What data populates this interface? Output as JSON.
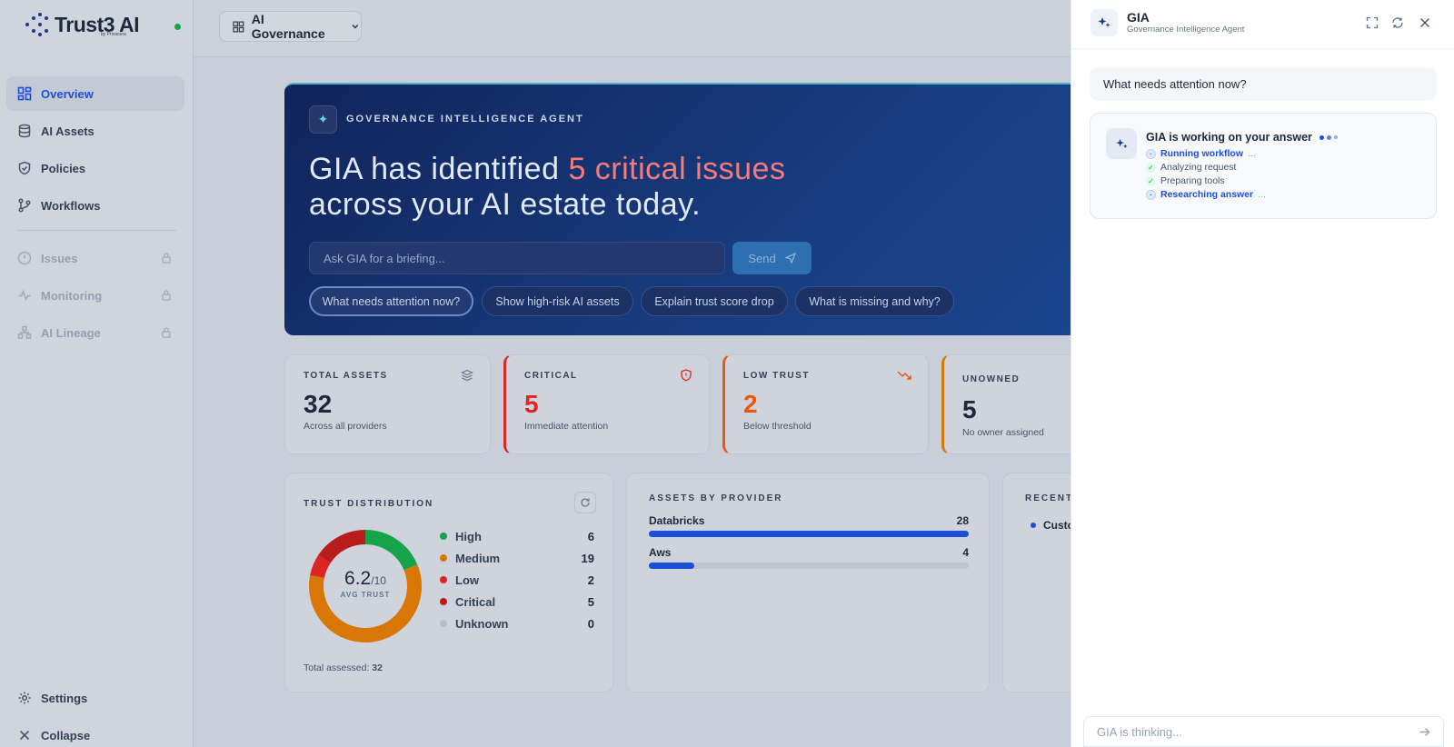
{
  "brand": {
    "name": "Trust3 AI",
    "sub": "by Privacera"
  },
  "nav": {
    "overview": "Overview",
    "assets": "AI Assets",
    "policies": "Policies",
    "workflows": "Workflows",
    "issues": "Issues",
    "monitoring": "Monitoring",
    "lineage": "AI Lineage",
    "settings": "Settings",
    "collapse": "Collapse"
  },
  "workspace": {
    "label": "AI Governance"
  },
  "hero": {
    "kicker": "GOVERNANCE INTELLIGENCE AGENT",
    "title_pre": "GIA has identified ",
    "title_hl": "5 critical issues",
    "title_post": "across your AI estate today.",
    "input_placeholder": "Ask GIA for a briefing...",
    "send_label": "Send",
    "chips": [
      "What needs attention now?",
      "Show high-risk AI assets",
      "Explain trust score drop",
      "What is missing and why?"
    ]
  },
  "stats": {
    "total": {
      "label": "TOTAL ASSETS",
      "value": "32",
      "sub": "Across all providers"
    },
    "critical": {
      "label": "CRITICAL",
      "value": "5",
      "sub": "Immediate attention"
    },
    "low": {
      "label": "LOW TRUST",
      "value": "2",
      "sub": "Below threshold"
    },
    "unowned": {
      "label": "UNOWNED",
      "value": "5",
      "sub": "No owner assigned"
    }
  },
  "trust": {
    "label": "TRUST DISTRIBUTION",
    "avg_value": "6.2",
    "avg_denom": "/10",
    "avg_label": "AVG TRUST",
    "total_label": "Total assessed:",
    "total_value": "32",
    "items": [
      {
        "name": "High",
        "count": 6,
        "color": "#16a34a"
      },
      {
        "name": "Medium",
        "count": 19,
        "color": "#d97706"
      },
      {
        "name": "Low",
        "count": 2,
        "color": "#dc2626"
      },
      {
        "name": "Critical",
        "count": 5,
        "color": "#b91c1c"
      },
      {
        "name": "Unknown",
        "count": 0,
        "color": "#b8bfca"
      }
    ]
  },
  "providers": {
    "label": "ASSETS BY PROVIDER",
    "items": [
      {
        "name": "Databricks",
        "value": "28",
        "fraction": 1.0
      },
      {
        "name": "Aws",
        "value": "4",
        "fraction": 0.143
      }
    ]
  },
  "recent": {
    "label": "RECENT A",
    "item": "Custo"
  },
  "gia": {
    "title": "GIA",
    "subtitle": "Governance Intelligence Agent",
    "user_message": "What needs attention now?",
    "working_title": "GIA is working on your answer",
    "steps": [
      {
        "label": "Running workflow",
        "state": "running"
      },
      {
        "label": "Analyzing request",
        "state": "done"
      },
      {
        "label": "Preparing tools",
        "state": "done"
      },
      {
        "label": "Researching answer",
        "state": "running"
      }
    ],
    "input_placeholder": "GIA is thinking..."
  },
  "colors": {
    "accent": "#1d4ed8",
    "critical": "#dc2626",
    "low": "#ea580c",
    "hero_bg": "#173a7c"
  }
}
